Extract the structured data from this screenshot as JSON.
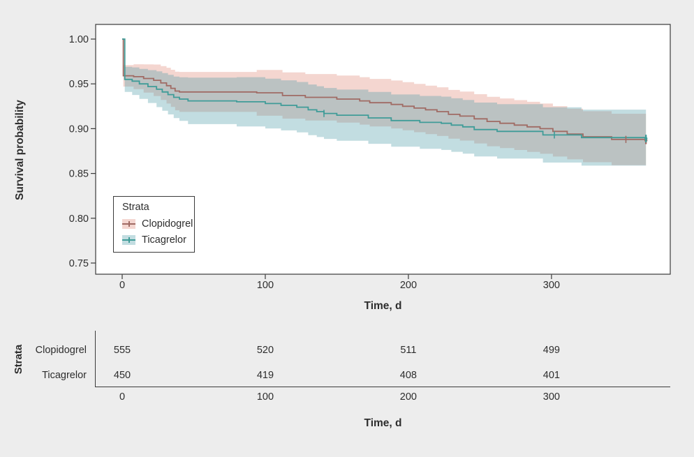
{
  "page": {
    "background": "#ededed"
  },
  "colors": {
    "text": "#2d2d2d",
    "axis": "#3a3a3a",
    "panel_bg": "#ffffff",
    "panel_border": "#3a3a3a"
  },
  "chart_data": {
    "type": "line",
    "subtype": "kaplan-meier-step-with-confidence-bands",
    "title": "",
    "xlabel": "Time, d",
    "ylabel": "Survival probability",
    "xlim": [
      -18.5,
      383
    ],
    "ylim": [
      0.7375,
      1.0165
    ],
    "xticks": [
      0,
      100,
      200,
      300
    ],
    "yticks": [
      "1.00",
      "0.95",
      "0.90",
      "0.85",
      "0.80",
      "0.75"
    ],
    "grid": false,
    "t_max": 366,
    "legend": {
      "title": "Strata",
      "position": "inside bottom-left"
    },
    "series": [
      {
        "name": "Clopidogrel",
        "line_color": "#a06b64",
        "band_color": "rgba(223,137,120,0.35)",
        "ci_halfwidth": {
          "t": [
            1,
            50,
            366
          ],
          "w": [
            0.012,
            0.025,
            0.029
          ]
        },
        "censor_times": [
          352,
          366
        ],
        "steps": [
          [
            0,
            1.0
          ],
          [
            0.8,
            0.959
          ],
          [
            8,
            0.958
          ],
          [
            15,
            0.956
          ],
          [
            22,
            0.954
          ],
          [
            27,
            0.951
          ],
          [
            31,
            0.948
          ],
          [
            34,
            0.945
          ],
          [
            37,
            0.942
          ],
          [
            40,
            0.941
          ],
          [
            94,
            0.94
          ],
          [
            112,
            0.937
          ],
          [
            128,
            0.935
          ],
          [
            150,
            0.933
          ],
          [
            166,
            0.931
          ],
          [
            173,
            0.929
          ],
          [
            188,
            0.927
          ],
          [
            196,
            0.925
          ],
          [
            204,
            0.923
          ],
          [
            212,
            0.921
          ],
          [
            220,
            0.919
          ],
          [
            228,
            0.916
          ],
          [
            236,
            0.914
          ],
          [
            246,
            0.911
          ],
          [
            255,
            0.908
          ],
          [
            264,
            0.906
          ],
          [
            274,
            0.904
          ],
          [
            283,
            0.902
          ],
          [
            292,
            0.9
          ],
          [
            301,
            0.897
          ],
          [
            311,
            0.894
          ],
          [
            322,
            0.891
          ],
          [
            342,
            0.888
          ],
          [
            366,
            0.887
          ]
        ]
      },
      {
        "name": "Ticagrelor",
        "line_color": "#3f9c98",
        "band_color": "rgba(80,157,169,0.35)",
        "ci_halfwidth": {
          "t": [
            2,
            50,
            366
          ],
          "w": [
            0.014,
            0.027,
            0.032
          ]
        },
        "censor_times": [
          141,
          302,
          366
        ],
        "steps": [
          [
            0,
            1.0
          ],
          [
            1.8,
            0.955
          ],
          [
            7,
            0.953
          ],
          [
            12,
            0.95
          ],
          [
            18,
            0.947
          ],
          [
            24,
            0.944
          ],
          [
            28,
            0.941
          ],
          [
            32,
            0.938
          ],
          [
            36,
            0.935
          ],
          [
            40,
            0.933
          ],
          [
            46,
            0.931
          ],
          [
            80,
            0.93
          ],
          [
            100,
            0.928
          ],
          [
            111,
            0.926
          ],
          [
            122,
            0.924
          ],
          [
            130,
            0.921
          ],
          [
            136,
            0.919
          ],
          [
            141,
            0.917
          ],
          [
            150,
            0.915
          ],
          [
            172,
            0.912
          ],
          [
            188,
            0.909
          ],
          [
            208,
            0.907
          ],
          [
            223,
            0.906
          ],
          [
            230,
            0.904
          ],
          [
            238,
            0.902
          ],
          [
            246,
            0.899
          ],
          [
            262,
            0.897
          ],
          [
            294,
            0.893
          ],
          [
            321,
            0.89
          ],
          [
            366,
            0.889
          ]
        ]
      }
    ]
  },
  "risk_table": {
    "ylabel": "Strata",
    "xlabel": "Time, d",
    "xticks": [
      0,
      100,
      200,
      300
    ],
    "rows": [
      {
        "label": "Clopidogrel",
        "values": [
          555,
          520,
          511,
          499
        ]
      },
      {
        "label": "Ticagrelor",
        "values": [
          450,
          419,
          408,
          401
        ]
      }
    ]
  }
}
